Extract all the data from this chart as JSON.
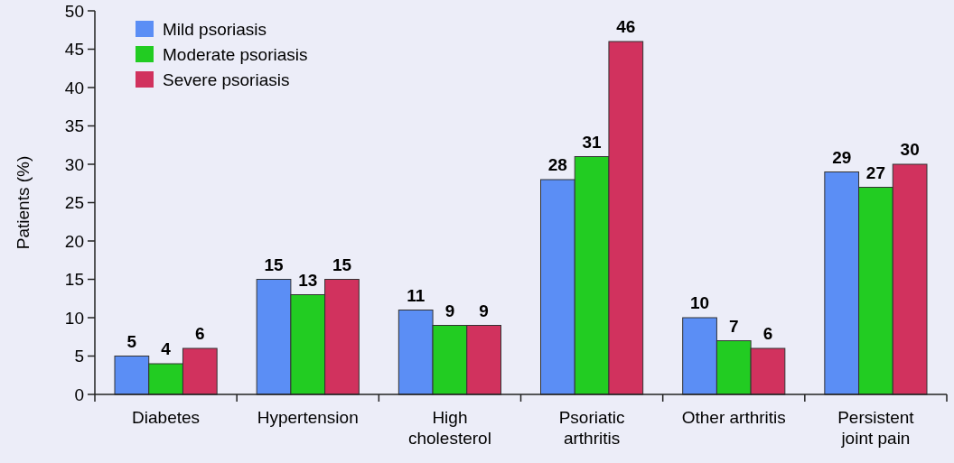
{
  "chart_data": {
    "type": "bar",
    "ylabel": "Patients (%)",
    "categories": [
      "Diabetes",
      "Hypertension",
      "High\ncholesterol",
      "Psoriatic\narthritis",
      "Other arthritis",
      "Persistent\njoint pain"
    ],
    "series": [
      {
        "name": "Mild psoriasis",
        "color": "#5b8ef5",
        "values": [
          5,
          15,
          11,
          28,
          10,
          29
        ]
      },
      {
        "name": "Moderate psoriasis",
        "color": "#22cc22",
        "values": [
          4,
          13,
          9,
          31,
          7,
          27
        ]
      },
      {
        "name": "Severe psoriasis",
        "color": "#d1325e",
        "values": [
          6,
          15,
          9,
          46,
          6,
          30
        ]
      }
    ],
    "ylim": [
      0,
      50
    ],
    "yticks": [
      0,
      5,
      10,
      15,
      20,
      25,
      30,
      35,
      40,
      45,
      50
    ],
    "data_labels": true,
    "legend": "top left",
    "grid": false
  }
}
